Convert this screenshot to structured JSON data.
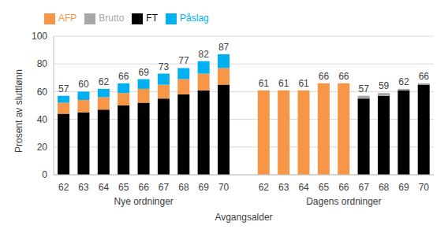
{
  "chart_data": {
    "type": "bar",
    "stacked": true,
    "y_label": "Prosent av sluttlønn",
    "x_label": "Avgangsalder",
    "groups": [
      "Nye ordninger",
      "Dagens ordninger"
    ],
    "categories": [
      "62",
      "63",
      "64",
      "65",
      "66",
      "67",
      "68",
      "69",
      "70",
      null,
      "62",
      "63",
      "64",
      "65",
      "66",
      "67",
      "68",
      "69",
      "70"
    ],
    "series": [
      {
        "name": "FT",
        "color": "#000000",
        "values": [
          44,
          45,
          47,
          50,
          52,
          55,
          58,
          61,
          65,
          null,
          0,
          0,
          0,
          0,
          0,
          55,
          57,
          61,
          65
        ]
      },
      {
        "name": "AFP",
        "color": "#f79646",
        "values": [
          8,
          9,
          9,
          9,
          10,
          10,
          11,
          12,
          12,
          null,
          61,
          61,
          61,
          66,
          66,
          0,
          0,
          0,
          0
        ]
      },
      {
        "name": "Brutto",
        "color": "#a6a6a6",
        "values": [
          0,
          0,
          0,
          0,
          0,
          0,
          0,
          0,
          0,
          null,
          0,
          0,
          0,
          0,
          0,
          2,
          2,
          1,
          1
        ]
      },
      {
        "name": "Påslag",
        "color": "#00b0f0",
        "values": [
          5,
          6,
          6,
          7,
          7,
          8,
          8,
          9,
          10,
          null,
          0,
          0,
          0,
          0,
          0,
          0,
          0,
          0,
          0
        ]
      }
    ],
    "totals": [
      57,
      60,
      62,
      66,
      69,
      73,
      77,
      82,
      87,
      null,
      61,
      61,
      61,
      66,
      66,
      57,
      59,
      62,
      66
    ],
    "ylim": [
      0,
      100
    ],
    "yticks": [
      0,
      20,
      40,
      60,
      80,
      100
    ],
    "grid": true,
    "legend": "top"
  }
}
